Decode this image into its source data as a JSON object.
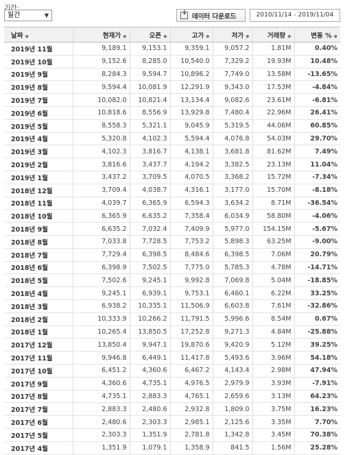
{
  "controls": {
    "period_label": "기간:",
    "period_value": "월간",
    "download_label": "데이터 다운로드",
    "date_range": "2010/11/14 - 2019/11/04"
  },
  "colors": {
    "up": "#d40000",
    "down": "#1e72b6",
    "teal": "#2a8fa3",
    "header_bg": "#f1f1f1"
  },
  "table": {
    "headers": {
      "date": "날짜",
      "close": "현재가",
      "open": "오픈",
      "high": "고가",
      "low": "저가",
      "volume": "거래량",
      "change": "변동 %"
    },
    "rows": [
      {
        "date": "2019년 11월",
        "close": "9,189.1",
        "open": "9,153.1",
        "high": "9,359.1",
        "low": "9,057.2",
        "volume": "1.81M",
        "change": "0.40%",
        "dir": "up"
      },
      {
        "date": "2019년 10월",
        "close": "9,152.6",
        "open": "8,285.0",
        "high": "10,540.0",
        "low": "7,329.2",
        "volume": "19.93M",
        "change": "10.48%",
        "dir": "up"
      },
      {
        "date": "2019년 9월",
        "close": "8,284.3",
        "open": "9,594.7",
        "high": "10,896.2",
        "low": "7,749.0",
        "volume": "13.58M",
        "change": "-13.65%",
        "dir": "teal"
      },
      {
        "date": "2019년 8월",
        "close": "9,594.4",
        "open": "10,081.9",
        "high": "12,291.9",
        "low": "9,343.0",
        "volume": "17.53M",
        "change": "-4.84%",
        "dir": "teal"
      },
      {
        "date": "2019년 7월",
        "close": "10,082.0",
        "open": "10,821.4",
        "high": "13,134.4",
        "low": "9,082.6",
        "volume": "23.61M",
        "change": "-6.81%",
        "dir": "down"
      },
      {
        "date": "2019년 6월",
        "close": "10,818.6",
        "open": "8,556.9",
        "high": "13,929.8",
        "low": "7,480.4",
        "volume": "22.96M",
        "change": "26.41%",
        "dir": "up"
      },
      {
        "date": "2019년 5월",
        "close": "8,558.3",
        "open": "5,321.1",
        "high": "9,045.9",
        "low": "5,319.5",
        "volume": "44.06M",
        "change": "60.85%",
        "dir": "up"
      },
      {
        "date": "2019년 4월",
        "close": "5,320.8",
        "open": "4,102.3",
        "high": "5,594.4",
        "low": "4,076.8",
        "volume": "54.03M",
        "change": "29.70%",
        "dir": "up"
      },
      {
        "date": "2019년 3월",
        "close": "4,102.3",
        "open": "3,816.7",
        "high": "4,138.1",
        "low": "3,681.8",
        "volume": "81.62M",
        "change": "7.49%",
        "dir": "up"
      },
      {
        "date": "2019년 2월",
        "close": "3,816.6",
        "open": "3,437.7",
        "high": "4,194.2",
        "low": "3,382.5",
        "volume": "23.13M",
        "change": "11.04%",
        "dir": "up"
      },
      {
        "date": "2019년 1월",
        "close": "3,437.2",
        "open": "3,709.5",
        "high": "4,070.5",
        "low": "3,368.2",
        "volume": "15.72M",
        "change": "-7.34%",
        "dir": "down"
      },
      {
        "date": "2018년 12월",
        "close": "3,709.4",
        "open": "4,038.7",
        "high": "4,316.1",
        "low": "3,177.0",
        "volume": "15.70M",
        "change": "-8.18%",
        "dir": "down"
      },
      {
        "date": "2018년 11월",
        "close": "4,039.7",
        "open": "6,365.9",
        "high": "6,594.3",
        "low": "3,634.2",
        "volume": "8.71M",
        "change": "-36.54%",
        "dir": "down"
      },
      {
        "date": "2018년 10월",
        "close": "6,365.9",
        "open": "6,635.2",
        "high": "7,358.4",
        "low": "6,034.9",
        "volume": "58.80M",
        "change": "-4.06%",
        "dir": "down"
      },
      {
        "date": "2018년 9월",
        "close": "6,635.2",
        "open": "7,032.4",
        "high": "7,409.9",
        "low": "5,977.0",
        "volume": "154.15M",
        "change": "-5.67%",
        "dir": "down"
      },
      {
        "date": "2018년 8월",
        "close": "7,033.8",
        "open": "7,728.5",
        "high": "7,753.2",
        "low": "5,898.3",
        "volume": "63.25M",
        "change": "-9.00%",
        "dir": "down"
      },
      {
        "date": "2018년 7월",
        "close": "7,729.4",
        "open": "6,398.5",
        "high": "8,484.6",
        "low": "6,398.5",
        "volume": "7.06M",
        "change": "20.79%",
        "dir": "up"
      },
      {
        "date": "2018년 6월",
        "close": "6,398.9",
        "open": "7,502.5",
        "high": "7,775.0",
        "low": "5,785.3",
        "volume": "4.78M",
        "change": "-14.71%",
        "dir": "down"
      },
      {
        "date": "2018년 5월",
        "close": "7,502.6",
        "open": "9,245.1",
        "high": "9,992.8",
        "low": "7,069.8",
        "volume": "5.04M",
        "change": "-18.85%",
        "dir": "down"
      },
      {
        "date": "2018년 4월",
        "close": "9,245.1",
        "open": "6,939.1",
        "high": "9,753.1",
        "low": "6,460.1",
        "volume": "6.22M",
        "change": "33.25%",
        "dir": "up"
      },
      {
        "date": "2018년 3월",
        "close": "6,938.2",
        "open": "10,335.1",
        "high": "11,506.9",
        "low": "6,603.8",
        "volume": "7.61M",
        "change": "-32.86%",
        "dir": "down"
      },
      {
        "date": "2018년 2월",
        "close": "10,333.9",
        "open": "10,266.2",
        "high": "11,791.5",
        "low": "5,996.6",
        "volume": "8.54M",
        "change": "0.67%",
        "dir": "up"
      },
      {
        "date": "2018년 1월",
        "close": "10,265.4",
        "open": "13,850.5",
        "high": "17,252.8",
        "low": "9,271.3",
        "volume": "4.84M",
        "change": "-25.88%",
        "dir": "down"
      },
      {
        "date": "2017년 12월",
        "close": "13,850.4",
        "open": "9,947.1",
        "high": "19,870.6",
        "low": "9,420.9",
        "volume": "5.12M",
        "change": "39.25%",
        "dir": "up"
      },
      {
        "date": "2017년 11월",
        "close": "9,946.8",
        "open": "6,449.1",
        "high": "11,417.8",
        "low": "5,493.6",
        "volume": "3.96M",
        "change": "54.18%",
        "dir": "up"
      },
      {
        "date": "2017년 10월",
        "close": "6,451.2",
        "open": "4,360.6",
        "high": "6,467.2",
        "low": "4,143.4",
        "volume": "2.98M",
        "change": "47.94%",
        "dir": "up"
      },
      {
        "date": "2017년 9월",
        "close": "4,360.6",
        "open": "4,735.1",
        "high": "4,976.5",
        "low": "2,979.9",
        "volume": "3.93M",
        "change": "-7.91%",
        "dir": "down"
      },
      {
        "date": "2017년 8월",
        "close": "4,735.1",
        "open": "2,883.3",
        "high": "4,765.1",
        "low": "2,659.6",
        "volume": "3.13M",
        "change": "64.23%",
        "dir": "up"
      },
      {
        "date": "2017년 7월",
        "close": "2,883.3",
        "open": "2,480.6",
        "high": "2,932.8",
        "low": "1,809.0",
        "volume": "3.75M",
        "change": "16.23%",
        "dir": "up"
      },
      {
        "date": "2017년 6월",
        "close": "2,480.6",
        "open": "2,303.3",
        "high": "2,985.1",
        "low": "2,125.6",
        "volume": "3.35M",
        "change": "7.70%",
        "dir": "up"
      },
      {
        "date": "2017년 5월",
        "close": "2,303.3",
        "open": "1,351.9",
        "high": "2,781.8",
        "low": "1,342.8",
        "volume": "3.45M",
        "change": "70.38%",
        "dir": "up"
      },
      {
        "date": "2017년 4월",
        "close": "1,351.9",
        "open": "1,079.1",
        "high": "1,358.9",
        "low": "841.5",
        "volume": "1.56M",
        "change": "25.28%",
        "dir": "up"
      }
    ]
  }
}
